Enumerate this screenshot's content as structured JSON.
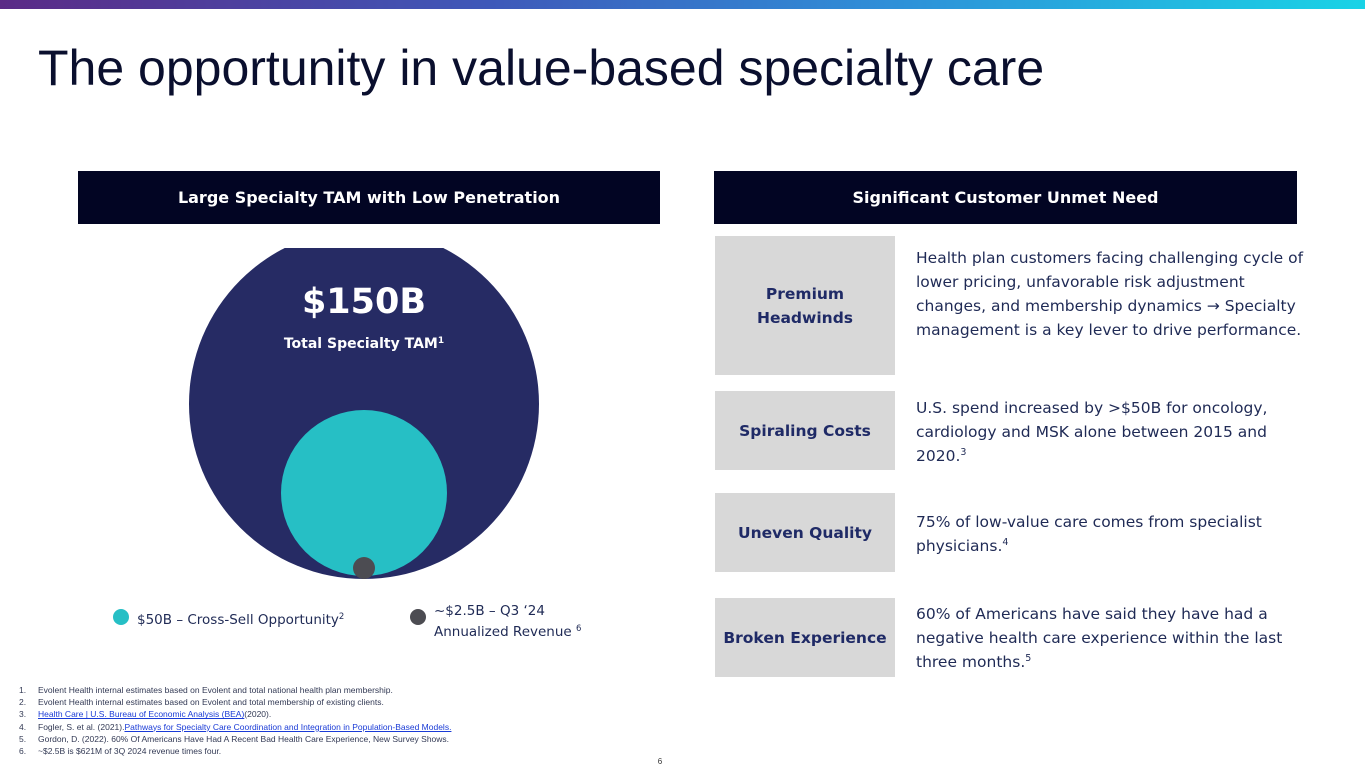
{
  "slide": {
    "title": "The opportunity in value-based specialty care",
    "page_number": "6"
  },
  "left_panel": {
    "header": "Large Specialty TAM with Low Penetration",
    "tam_value": "$150B",
    "tam_label": "Total Specialty TAM",
    "tam_label_sup": "1",
    "legend": [
      {
        "text": "$50B – Cross-Sell Opportunity",
        "sup": "2",
        "color": "#26bfc5"
      },
      {
        "line1": "~$2.5B – Q3 ‘24",
        "line2": "Annualized Revenue",
        "sup": "6",
        "color": "#4c4c52"
      }
    ],
    "colors": {
      "total": "#262b64",
      "cross_sell": "#26bfc5",
      "revenue": "#4c4c52"
    }
  },
  "right_panel": {
    "header": "Significant Customer Unmet Need",
    "items": [
      {
        "label": "Premium Headwinds",
        "text": "Health plan customers facing challenging cycle of lower pricing, unfavorable risk adjustment changes, and membership dynamics → Specialty management is a key lever to drive performance.",
        "sup": ""
      },
      {
        "label": "Spiraling Costs",
        "text": "U.S. spend increased by >$50B for oncology, cardiology and MSK alone between 2015 and 2020.",
        "sup": "3"
      },
      {
        "label": "Uneven Quality",
        "text": "75% of low-value care comes from specialist physicians.",
        "sup": "4"
      },
      {
        "label": "Broken Experience",
        "text": "60% of Americans have said they have had a negative health care experience within the last three months.",
        "sup": "5"
      }
    ]
  },
  "footnotes": [
    {
      "num": "1.",
      "text": "Evolent Health internal estimates based on Evolent and total national health plan membership.",
      "link": "",
      "after": ""
    },
    {
      "num": "2.",
      "text": "Evolent Health internal estimates based on Evolent and total membership of existing clients.",
      "link": "",
      "after": ""
    },
    {
      "num": "3.",
      "text": "",
      "link": "Health Care | U.S. Bureau of Economic Analysis (BEA)",
      "after": " (2020)."
    },
    {
      "num": "4.",
      "text": "Fogler, S. et al. (2021). ",
      "link": "Pathways for Specialty Care Coordination and Integration in Population-Based Models.",
      "after": ""
    },
    {
      "num": "5.",
      "text": "Gordon, D. (2022). 60% Of Americans Have Had A Recent Bad Health Care Experience, New Survey Shows.",
      "link": "",
      "after": ""
    },
    {
      "num": "6.",
      "text": "~$2.5B is $621M of 3Q 2024 revenue times four.",
      "link": "",
      "after": ""
    }
  ]
}
